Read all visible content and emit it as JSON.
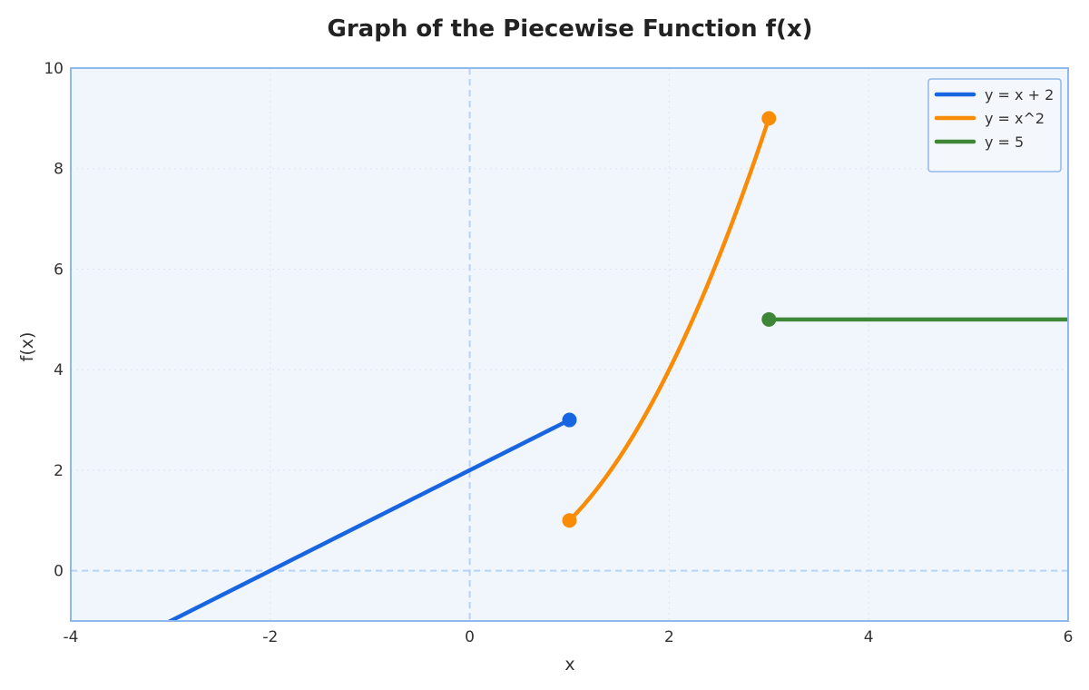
{
  "chart_data": {
    "type": "line",
    "title": "Graph of the Piecewise Function f(x)",
    "xlabel": "x",
    "ylabel": "f(x)",
    "xlim": [
      -4,
      6
    ],
    "ylim": [
      -1,
      10
    ],
    "x_ticks": [
      -4,
      -2,
      0,
      2,
      4,
      6
    ],
    "y_ticks": [
      0,
      2,
      4,
      6,
      8,
      10
    ],
    "grid": true,
    "legend_position": "top-right",
    "reference_lines": {
      "x": 0,
      "y": 0
    },
    "colors": {
      "plot_background": "#f1f6fc",
      "frame": "#8fb8ec",
      "grid": "#dde6f2",
      "reference": "#b9d3f5"
    },
    "series": [
      {
        "name": "y = x + 2",
        "expression": "x + 2",
        "domain": [
          -4,
          1
        ],
        "color": "#1765e0",
        "x": [
          -4,
          -3,
          -2,
          -1,
          0,
          1
        ],
        "y": [
          -2,
          -1,
          0,
          1,
          2,
          3
        ],
        "endpoint": {
          "x": 1,
          "y": 3
        }
      },
      {
        "name": "y = x^2",
        "expression": "x^2",
        "domain": [
          1,
          3
        ],
        "color": "#f98c06",
        "x": [
          1,
          1.25,
          1.5,
          1.75,
          2,
          2.25,
          2.5,
          2.75,
          3
        ],
        "y": [
          1,
          1.5625,
          2.25,
          3.0625,
          4,
          5.0625,
          6.25,
          7.5625,
          9
        ],
        "endpoints": [
          {
            "x": 1,
            "y": 1
          },
          {
            "x": 3,
            "y": 9
          }
        ]
      },
      {
        "name": "y = 5",
        "expression": "5",
        "domain": [
          3,
          6
        ],
        "color": "#3d8736",
        "x": [
          3,
          6
        ],
        "y": [
          5,
          5
        ],
        "endpoint": {
          "x": 3,
          "y": 5
        }
      }
    ]
  }
}
